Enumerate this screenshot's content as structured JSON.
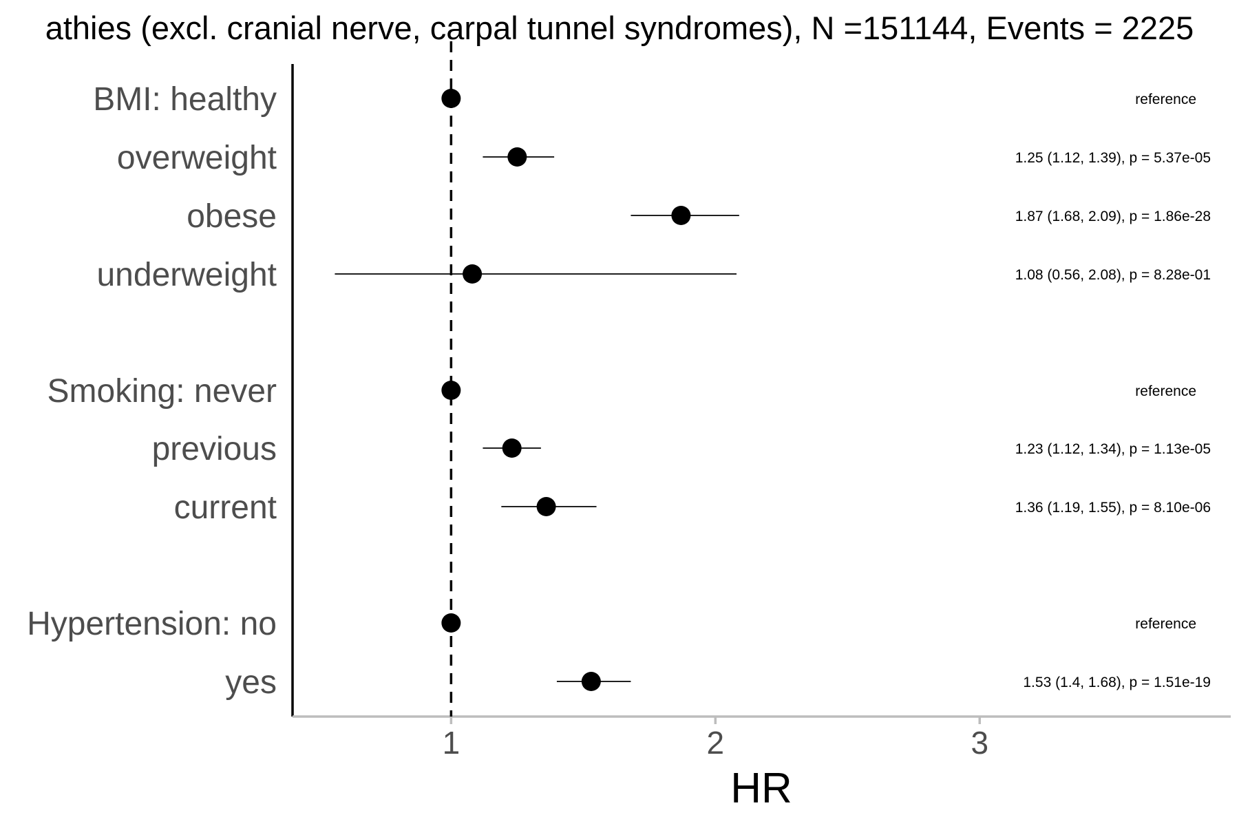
{
  "chart_data": {
    "type": "forest",
    "title": "athies (excl. cranial nerve, carpal tunnel syndromes), N =151144, Events = 2225",
    "xlabel": "HR",
    "xlim": [
      0.4,
      3.95
    ],
    "xticks": [
      1,
      2,
      3
    ],
    "reference_line": 1,
    "rows": [
      {
        "label": "BMI: healthy",
        "hr": 1.0,
        "lower": null,
        "upper": null,
        "annotation": "reference"
      },
      {
        "label": "overweight",
        "hr": 1.25,
        "lower": 1.12,
        "upper": 1.39,
        "annotation": "1.25 (1.12, 1.39), p = 5.37e-05"
      },
      {
        "label": "obese",
        "hr": 1.87,
        "lower": 1.68,
        "upper": 2.09,
        "annotation": "1.87 (1.68, 2.09), p = 1.86e-28"
      },
      {
        "label": "underweight",
        "hr": 1.08,
        "lower": 0.56,
        "upper": 2.08,
        "annotation": "1.08 (0.56, 2.08), p = 8.28e-01"
      },
      {
        "label": "Smoking: never",
        "hr": 1.0,
        "lower": null,
        "upper": null,
        "annotation": "reference"
      },
      {
        "label": "previous",
        "hr": 1.23,
        "lower": 1.12,
        "upper": 1.34,
        "annotation": "1.23 (1.12, 1.34), p = 1.13e-05"
      },
      {
        "label": "current",
        "hr": 1.36,
        "lower": 1.19,
        "upper": 1.55,
        "annotation": "1.36 (1.19, 1.55), p = 8.10e-06"
      },
      {
        "label": "Hypertension: no",
        "hr": 1.0,
        "lower": null,
        "upper": null,
        "annotation": "reference"
      },
      {
        "label": "yes",
        "hr": 1.53,
        "lower": 1.4,
        "upper": 1.68,
        "annotation": "1.53 (1.4, 1.68), p = 1.51e-19"
      }
    ],
    "colors": {
      "point": "#000000",
      "label": "#4d4d4d",
      "axis": "#bdbdbd"
    }
  }
}
